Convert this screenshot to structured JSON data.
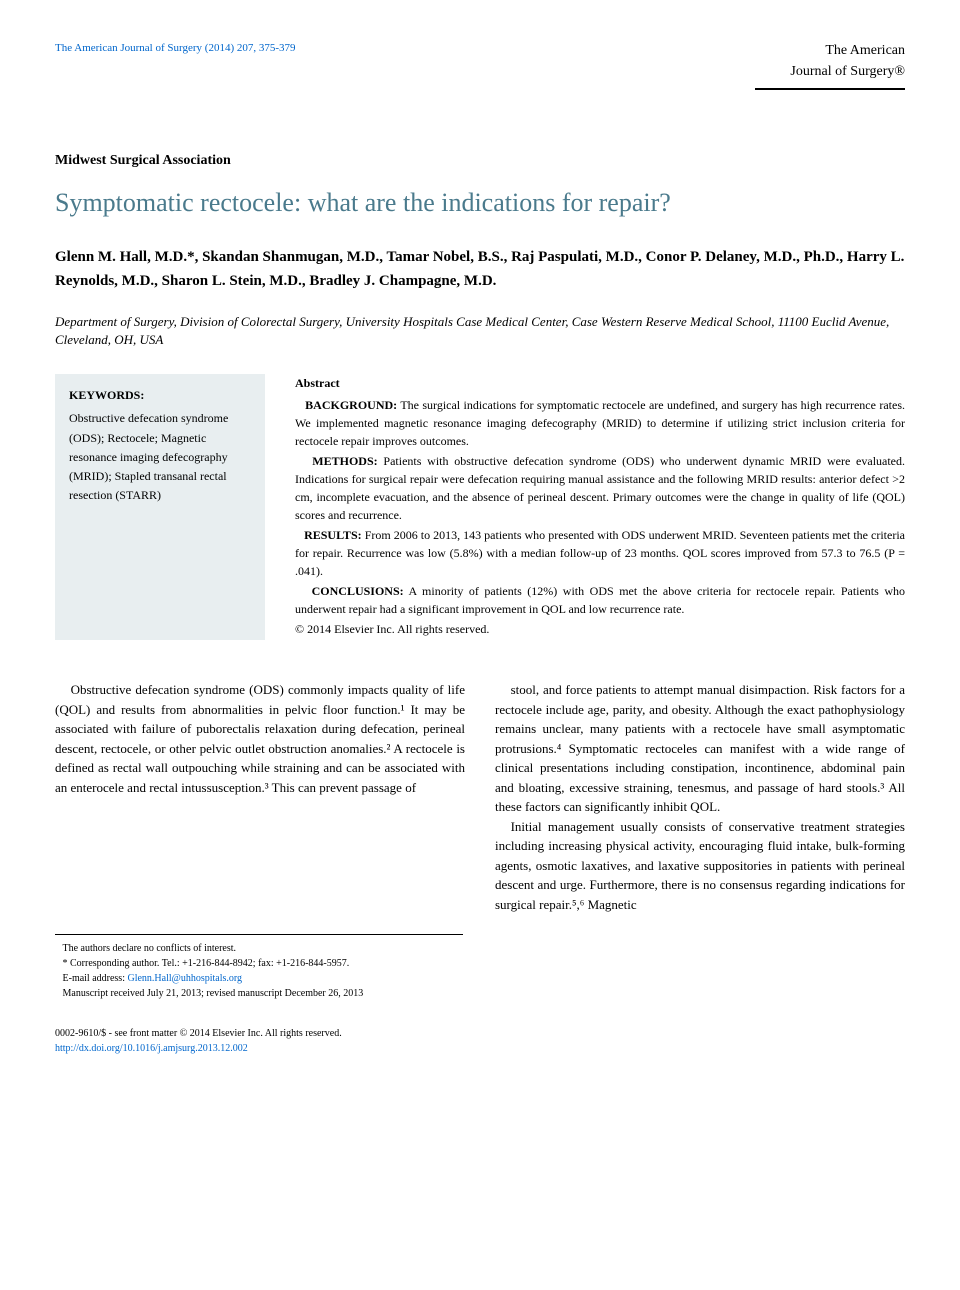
{
  "header": {
    "journal_ref": "The American Journal of Surgery (2014) 207, 375-379",
    "logo_line1": "The American",
    "logo_line2": "Journal of Surgery®"
  },
  "section_label": "Midwest Surgical Association",
  "title": "Symptomatic rectocele: what are the indications for repair?",
  "authors": "Glenn M. Hall, M.D.*, Skandan Shanmugan, M.D., Tamar Nobel, B.S., Raj Paspulati, M.D., Conor P. Delaney, M.D., Ph.D., Harry L. Reynolds, M.D., Sharon L. Stein, M.D., Bradley J. Champagne, M.D.",
  "affiliation": "Department of Surgery, Division of Colorectal Surgery, University Hospitals Case Medical Center, Case Western Reserve Medical School, 11100 Euclid Avenue, Cleveland, OH, USA",
  "keywords": {
    "heading": "KEYWORDS:",
    "items": "Obstructive defecation syndrome (ODS); Rectocele; Magnetic resonance imaging defecography (MRID); Stapled transanal rectal resection (STARR)"
  },
  "abstract": {
    "heading": "Abstract",
    "background_label": "BACKGROUND:",
    "background": "The surgical indications for symptomatic rectocele are undefined, and surgery has high recurrence rates. We implemented magnetic resonance imaging defecography (MRID) to determine if utilizing strict inclusion criteria for rectocele repair improves outcomes.",
    "methods_label": "METHODS:",
    "methods": "Patients with obstructive defecation syndrome (ODS) who underwent dynamic MRID were evaluated. Indications for surgical repair were defecation requiring manual assistance and the following MRID results: anterior defect >2 cm, incomplete evacuation, and the absence of perineal descent. Primary outcomes were the change in quality of life (QOL) scores and recurrence.",
    "results_label": "RESULTS:",
    "results": "From 2006 to 2013, 143 patients who presented with ODS underwent MRID. Seventeen patients met the criteria for repair. Recurrence was low (5.8%) with a median follow-up of 23 months. QOL scores improved from 57.3 to 76.5 (P = .041).",
    "conclusions_label": "CONCLUSIONS:",
    "conclusions": "A minority of patients (12%) with ODS met the above criteria for rectocele repair. Patients who underwent repair had a significant improvement in QOL and low recurrence rate.",
    "copyright": "© 2014 Elsevier Inc. All rights reserved."
  },
  "body": {
    "col1_p1": "Obstructive defecation syndrome (ODS) commonly impacts quality of life (QOL) and results from abnormalities in pelvic floor function.¹ It may be associated with failure of puborectalis relaxation during defecation, perineal descent, rectocele, or other pelvic outlet obstruction anomalies.² A rectocele is defined as rectal wall outpouching while straining and can be associated with an enterocele and rectal intussusception.³ This can prevent passage of",
    "col2_p1": "stool, and force patients to attempt manual disimpaction. Risk factors for a rectocele include age, parity, and obesity. Although the exact pathophysiology remains unclear, many patients with a rectocele have small asymptomatic protrusions.⁴ Symptomatic rectoceles can manifest with a wide range of clinical presentations including constipation, incontinence, abdominal pain and bloating, excessive straining, tenesmus, and passage of hard stools.³ All these factors can significantly inhibit QOL.",
    "col2_p2": "Initial management usually consists of conservative treatment strategies including increasing physical activity, encouraging fluid intake, bulk-forming agents, osmotic laxatives, and laxative suppositories in patients with perineal descent and urge. Furthermore, there is no consensus regarding indications for surgical repair.⁵,⁶ Magnetic"
  },
  "footnotes": {
    "conflicts": "The authors declare no conflicts of interest.",
    "corresponding": "* Corresponding author. Tel.: +1-216-844-8942; fax: +1-216-844-5957.",
    "email_label": "E-mail address:",
    "email": "Glenn.Hall@uhhospitals.org",
    "manuscript": "Manuscript received July 21, 2013; revised manuscript December 26, 2013"
  },
  "footer": {
    "left": "0002-9610/$ - see front matter © 2014 Elsevier Inc. All rights reserved.",
    "doi": "http://dx.doi.org/10.1016/j.amjsurg.2013.12.002"
  }
}
